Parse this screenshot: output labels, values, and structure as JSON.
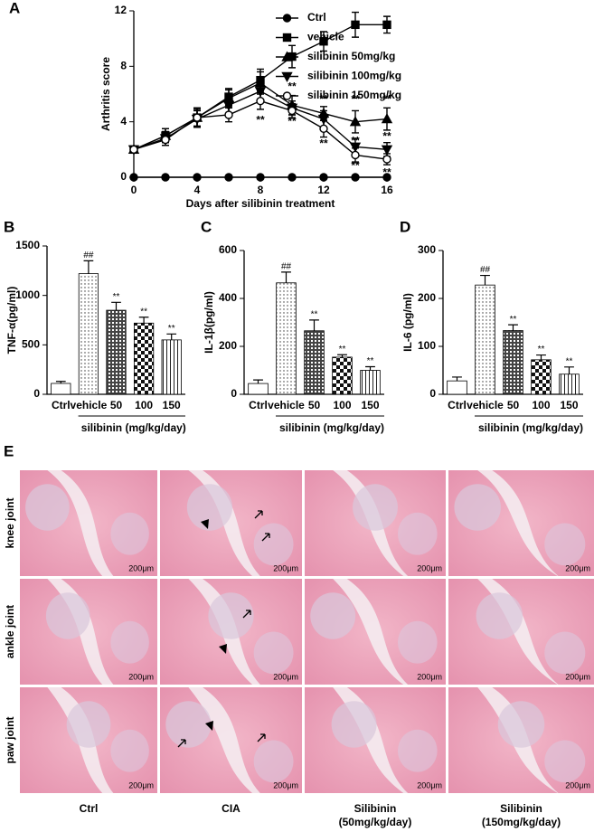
{
  "chart_data": [
    {
      "type": "line",
      "panel": "A",
      "ylabel": "Arthritis score",
      "xlabel": "Days after silibinin treatment",
      "x": [
        0,
        2,
        4,
        6,
        8,
        10,
        12,
        14,
        16
      ],
      "xlim": [
        0,
        16
      ],
      "xticks": [
        0,
        4,
        8,
        12,
        16
      ],
      "ylim": [
        0,
        12
      ],
      "yticks": [
        0,
        4,
        8,
        12
      ],
      "legend": "right",
      "series": [
        {
          "name": "Ctrl",
          "color": "#000000",
          "marker": "circle",
          "values": [
            0,
            0,
            0,
            0,
            0,
            0,
            0,
            0,
            0
          ],
          "errors": [
            0,
            0,
            0,
            0,
            0,
            0,
            0,
            0,
            0
          ]
        },
        {
          "name": "vehicle",
          "color": "#000000",
          "marker": "square",
          "values": [
            2,
            3,
            4.3,
            5.8,
            7,
            8.7,
            9.8,
            11,
            11
          ],
          "errors": [
            0.2,
            0.5,
            0.7,
            0.6,
            0.8,
            0.8,
            0.7,
            0.9,
            0.6
          ]
        },
        {
          "name": "silibinin 50mg/kg",
          "color": "#000000",
          "marker": "triangle-up",
          "values": [
            2,
            3,
            4.3,
            5.7,
            6.8,
            5.2,
            4.6,
            4,
            4.2
          ],
          "errors": [
            0.2,
            0.5,
            0.7,
            0.6,
            0.8,
            0.7,
            0.5,
            0.8,
            0.8
          ]
        },
        {
          "name": "silibinin 100mg/kg",
          "color": "#000000",
          "marker": "triangle-down",
          "values": [
            2,
            2.8,
            4.2,
            5.2,
            6.2,
            5,
            4.2,
            2.2,
            2
          ],
          "errors": [
            0.2,
            0.5,
            0.6,
            0.6,
            0.6,
            0.5,
            0.6,
            0.6,
            0.5
          ]
        },
        {
          "name": "silibinin 150mg/kg",
          "color": "#000000",
          "marker": "circle-open",
          "values": [
            2,
            2.7,
            4.3,
            4.5,
            5.5,
            4.8,
            3.5,
            1.6,
            1.3
          ],
          "errors": [
            0.2,
            0.4,
            0.6,
            0.5,
            0.6,
            0.5,
            0.6,
            0.5,
            0.4
          ]
        }
      ],
      "annotations": [
        {
          "x": 8,
          "y": 4.1,
          "text": "**"
        },
        {
          "x": 10,
          "y": 6.5,
          "text": "**"
        },
        {
          "x": 10,
          "y": 4.0,
          "text": "**"
        },
        {
          "x": 12,
          "y": 5.6,
          "text": "**"
        },
        {
          "x": 12,
          "y": 2.4,
          "text": "**"
        },
        {
          "x": 14,
          "y": 5.6,
          "text": "**"
        },
        {
          "x": 14,
          "y": 2.6,
          "text": "**"
        },
        {
          "x": 14,
          "y": 0.8,
          "text": "**"
        },
        {
          "x": 16,
          "y": 5.6,
          "text": "**"
        },
        {
          "x": 16,
          "y": 2.9,
          "text": "**"
        },
        {
          "x": 16,
          "y": 0.3,
          "text": "**"
        }
      ]
    },
    {
      "type": "bar",
      "panel": "B",
      "ylabel": "TNF-α(pg/ml)",
      "group_label": "silibinin (mg/kg/day)",
      "categories": [
        "Ctrl",
        "vehicle",
        "50",
        "100",
        "150"
      ],
      "values": [
        110,
        1220,
        850,
        720,
        550
      ],
      "errors": [
        20,
        130,
        80,
        60,
        60
      ],
      "fills": [
        "none",
        "dots",
        "cross",
        "checker",
        "stripes"
      ],
      "marks": [
        null,
        "##",
        "**",
        "**",
        "**"
      ],
      "ylim": [
        0,
        1500
      ],
      "yticks": [
        0,
        500,
        1000,
        1500
      ]
    },
    {
      "type": "bar",
      "panel": "C",
      "ylabel": "IL-1β(pg/ml)",
      "group_label": "silibinin (mg/kg/day)",
      "categories": [
        "Ctrl",
        "vehicle",
        "50",
        "100",
        "150"
      ],
      "values": [
        45,
        465,
        265,
        155,
        100
      ],
      "errors": [
        15,
        45,
        45,
        10,
        15
      ],
      "fills": [
        "none",
        "dots",
        "cross",
        "checker",
        "stripes"
      ],
      "marks": [
        null,
        "##",
        "**",
        "**",
        "**"
      ],
      "ylim": [
        0,
        600
      ],
      "yticks": [
        0,
        200,
        400,
        600
      ]
    },
    {
      "type": "bar",
      "panel": "D",
      "ylabel": "IL-6 (pg/ml)",
      "group_label": "silibinin (mg/kg/day)",
      "categories": [
        "Ctrl",
        "vehicle",
        "50",
        "100",
        "150"
      ],
      "values": [
        28,
        228,
        133,
        72,
        42
      ],
      "errors": [
        8,
        20,
        12,
        10,
        15
      ],
      "fills": [
        "none",
        "dots",
        "cross",
        "checker",
        "stripes"
      ],
      "marks": [
        null,
        "##",
        "**",
        "**",
        "**"
      ],
      "ylim": [
        0,
        300
      ],
      "yticks": [
        0,
        100,
        200,
        300
      ]
    }
  ],
  "histology": {
    "panel": "E",
    "rows": [
      "knee joint",
      "ankle joint",
      "paw joint"
    ],
    "columns": [
      [
        "Ctrl"
      ],
      [
        "CIA"
      ],
      [
        "Silibinin",
        "(50mg/kg/day)"
      ],
      [
        "Silibinin",
        "(150mg/kg/day)"
      ]
    ],
    "scale_bar": "200μm"
  }
}
